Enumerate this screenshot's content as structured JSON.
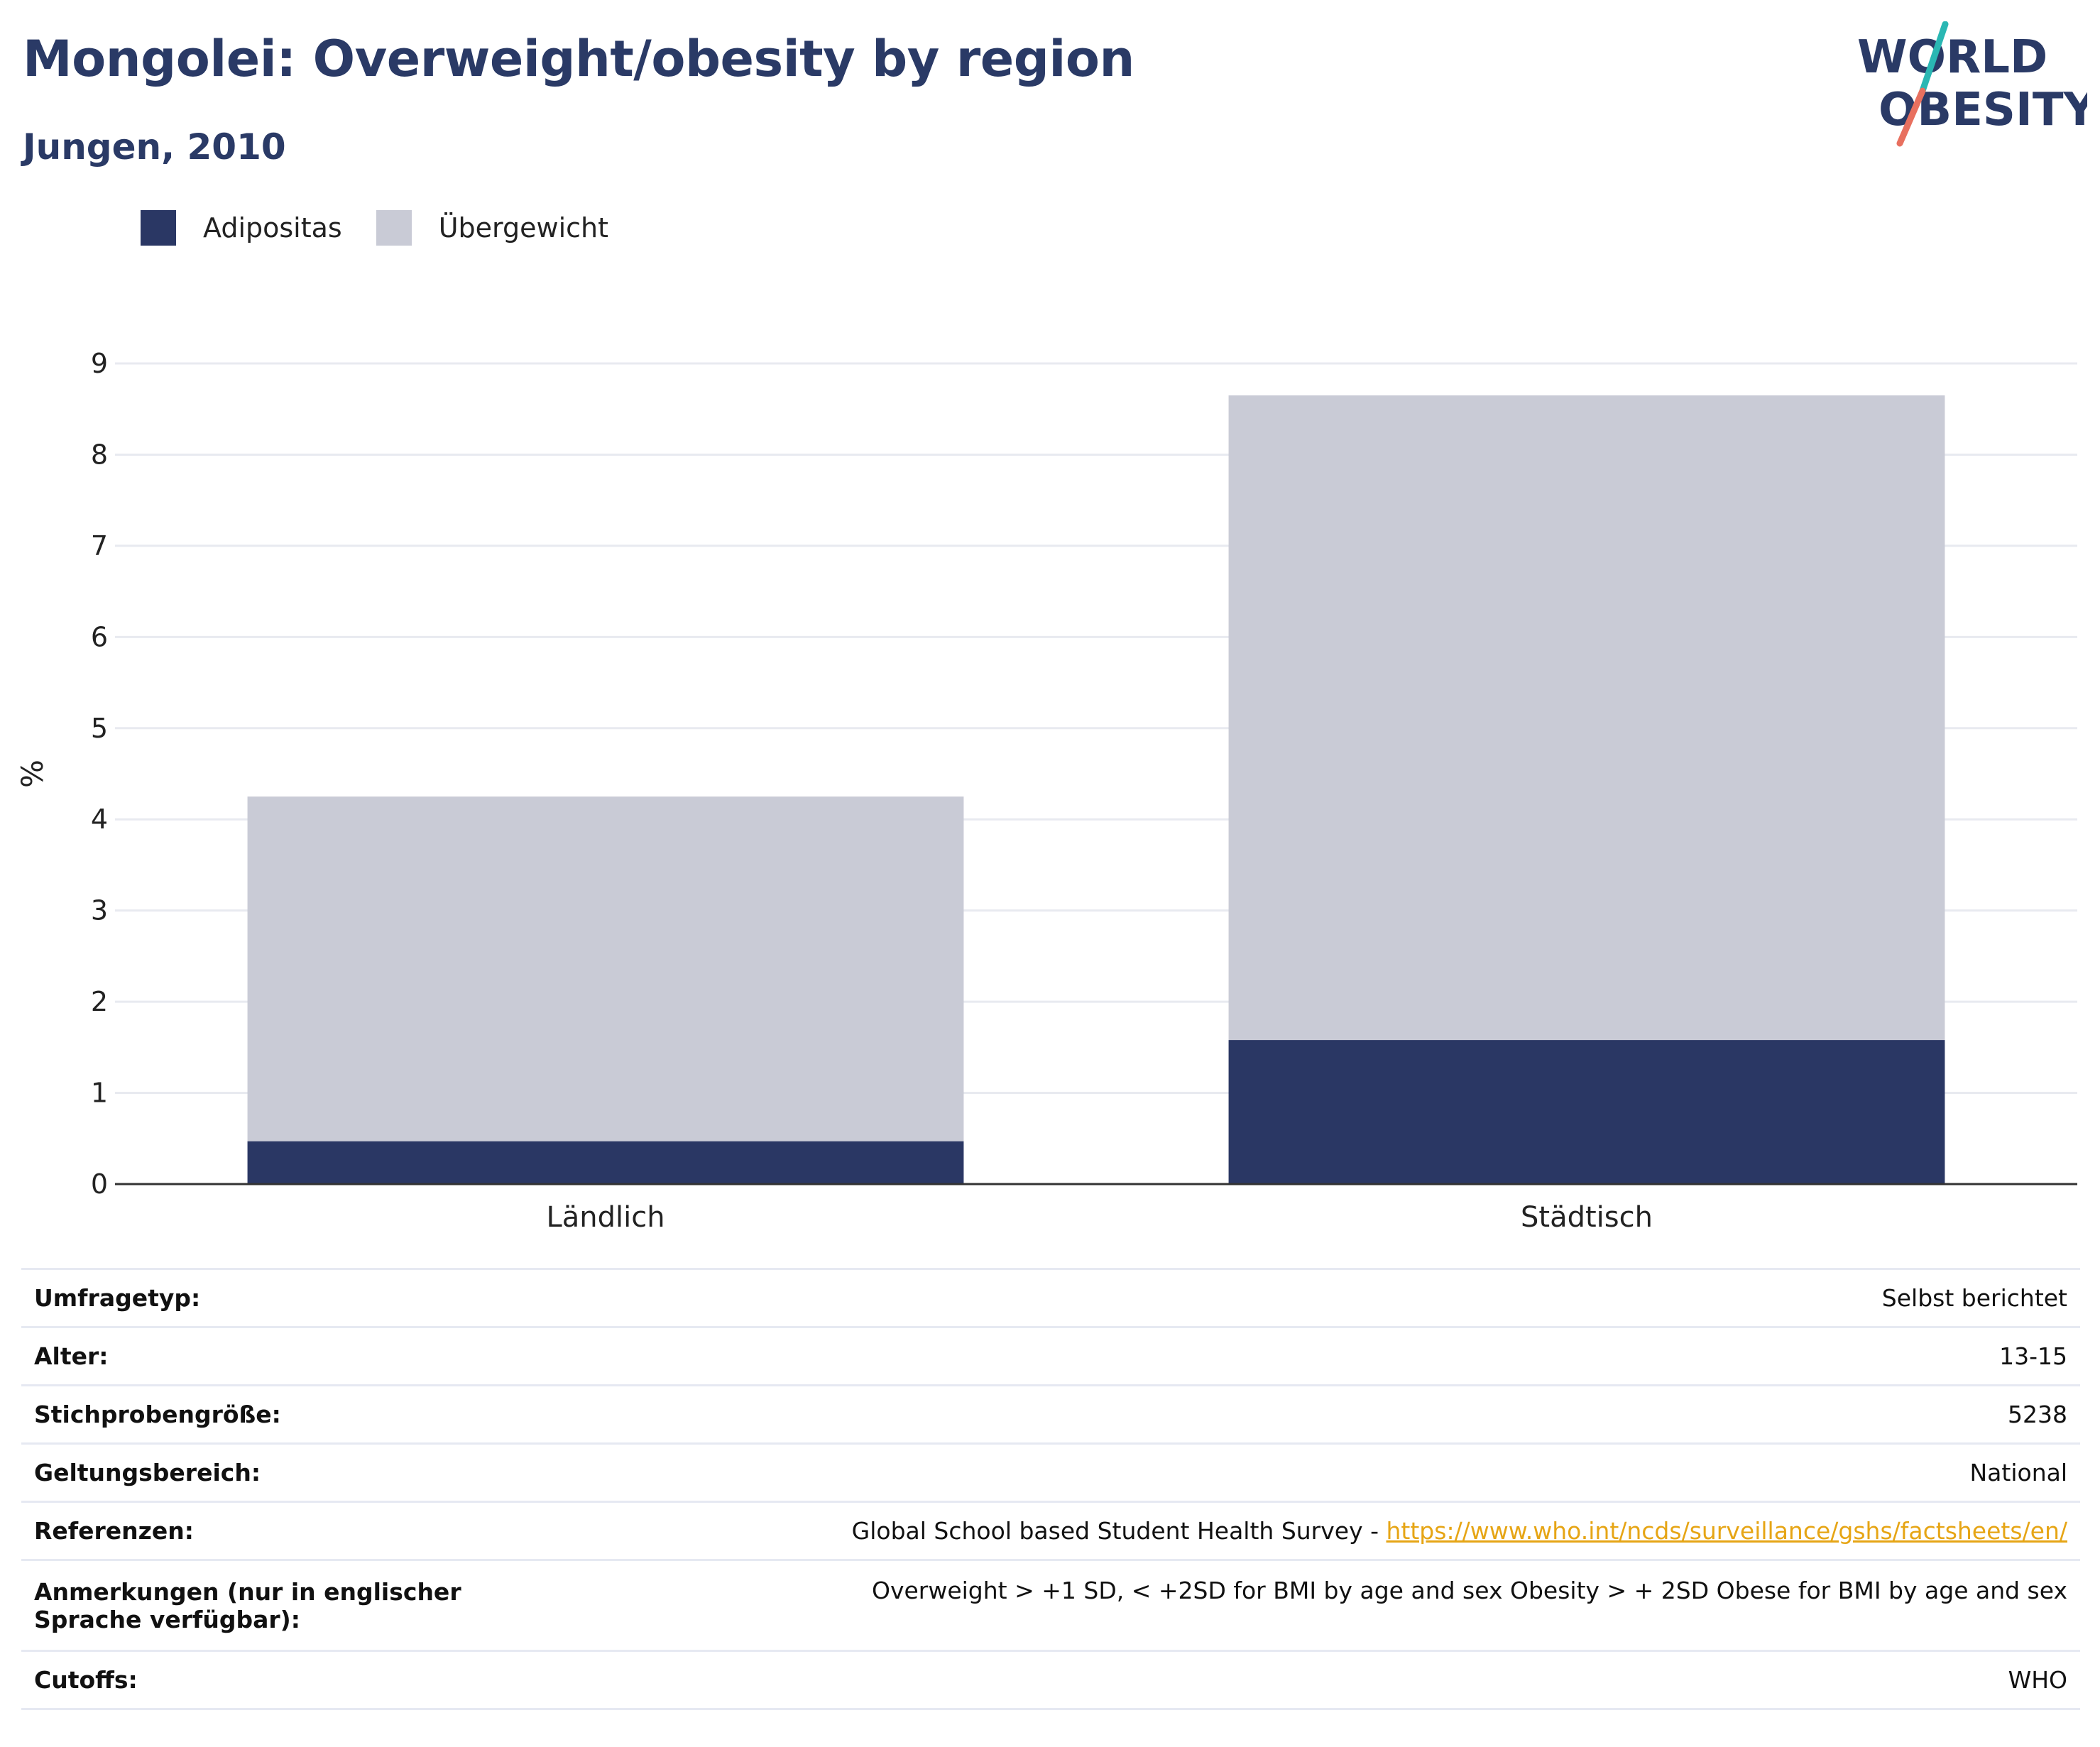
{
  "header": {
    "title": "Mongolei: Overweight/obesity by region",
    "subtitle": "Jungen, 2010"
  },
  "logo": {
    "line1": "WORLD",
    "line2": "OBESITY",
    "accent_teal": "#2ab7b3",
    "accent_coral": "#e8705f",
    "text_color": "#2a3a66"
  },
  "colors": {
    "obesity": "#2a3764",
    "overweight": "#c9cbd6",
    "grid": "#e8eaf0",
    "axis": "#333333",
    "link": "#e6a515"
  },
  "chart_data": {
    "type": "bar",
    "stacked": true,
    "categories": [
      "Ländlich",
      "Städtisch"
    ],
    "series": [
      {
        "name": "Adipositas",
        "values": [
          0.47,
          1.58
        ]
      },
      {
        "name": "Übergewicht",
        "values": [
          3.78,
          7.07
        ]
      }
    ],
    "totals": [
      4.25,
      8.65
    ],
    "ylabel": "%",
    "ylim": [
      0,
      9
    ],
    "yticks": [
      "0",
      "1",
      "2",
      "3",
      "4",
      "5",
      "6",
      "7",
      "8",
      "9"
    ],
    "grid": true,
    "legend": "top-left"
  },
  "info": {
    "rows": [
      {
        "key": "Umfragetyp:",
        "value": "Selbst berichtet"
      },
      {
        "key": "Alter:",
        "value": "13-15"
      },
      {
        "key": "Stichprobengröße:",
        "value": "5238"
      },
      {
        "key": "Geltungsbereich:",
        "value": "National"
      },
      {
        "key": "Referenzen:",
        "value": "Global School based Student Health Survey - ",
        "link": "https://www.who.int/ncds/surveillance/gshs/factsheets/en/"
      },
      {
        "key": "Anmerkungen (nur in englischer Sprache verfügbar):",
        "value": "Overweight > +1 SD, < +2SD for BMI by age and sex Obesity > + 2SD Obese for BMI by age and sex"
      },
      {
        "key": "Cutoffs:",
        "value": "WHO"
      }
    ]
  }
}
